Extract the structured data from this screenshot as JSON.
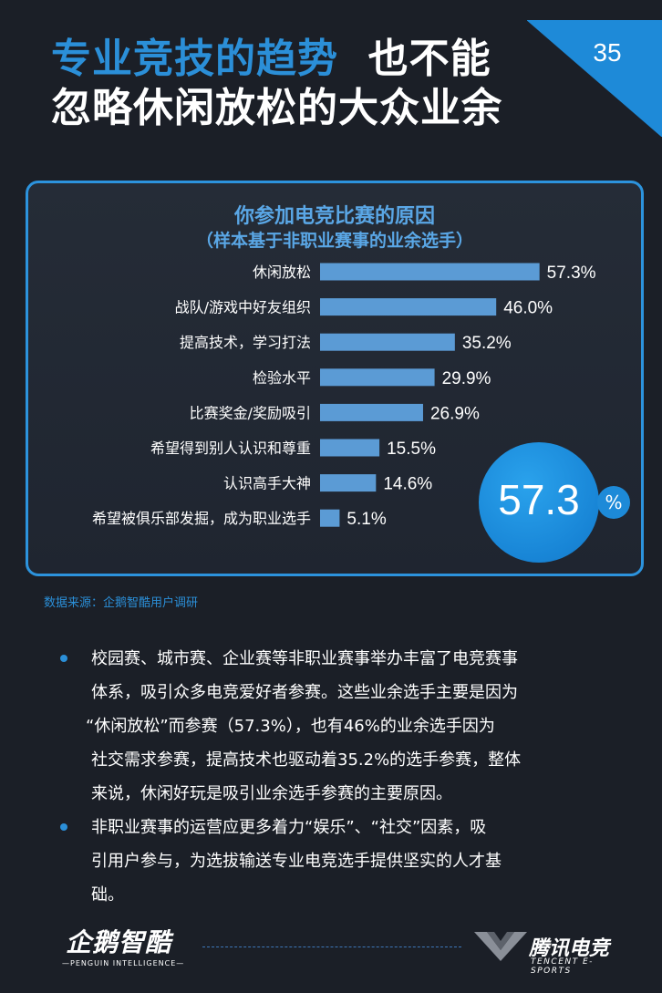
{
  "page_number": "35",
  "title": {
    "line1_highlight": "专业竞技的趋势",
    "line1_rest": "也不能",
    "line2": "忽略休闲放松的大众业余"
  },
  "chart_data": {
    "type": "bar",
    "orientation": "horizontal",
    "title": "你参加电竞比赛的原因",
    "subtitle": "（样本基于非职业赛事的业余选手）",
    "categories": [
      "休闲放松",
      "战队/游戏中好友组织",
      "提高技术，学习打法",
      "检验水平",
      "比赛奖金/奖励吸引",
      "希望得到别人认识和尊重",
      "认识高手大神",
      "希望被俱乐部发掘，成为职业选手"
    ],
    "values": [
      57.3,
      46.0,
      35.2,
      29.9,
      26.9,
      15.5,
      14.6,
      5.1
    ],
    "value_labels": [
      "57.3%",
      "46.0%",
      "35.2%",
      "29.9%",
      "26.9%",
      "15.5%",
      "14.6%",
      "5.1%"
    ],
    "unit": "%",
    "bar_color": "#5b9bd5",
    "highlight_value": "57.3",
    "highlight_unit": "%"
  },
  "source": "数据来源：企鹅智酷用户调研",
  "bullets": [
    [
      "校园赛、城市赛、企业赛等非职业赛事举办丰富了电竞赛事",
      "体系，吸引众多电竞爱好者参赛。这些业余选手主要是因为",
      "“休闲放松”而参赛（57.3%），也有46%的业余选手因为",
      "社交需求参赛，提高技术也驱动着35.2%的选手参赛，整体",
      "来说，休闲好玩是吸引业余选手参赛的主要原因。"
    ],
    [
      "非职业赛事的运营应更多着力“娱乐”、“社交”因素，吸",
      "引用户参与，为选拔输送专业电竞选手提供坚实的人才基",
      "础。"
    ]
  ],
  "footer": {
    "left_logo_cn": "企鹅智酷",
    "left_logo_en": "—PENGUIN INTELLIGENCE—",
    "right_logo_cn": "腾讯电竞",
    "right_logo_en": "TENCENT E-SPORTS"
  },
  "colors": {
    "background": "#1b1f27",
    "accent": "#2b8fd8",
    "bar": "#5b9bd5"
  }
}
